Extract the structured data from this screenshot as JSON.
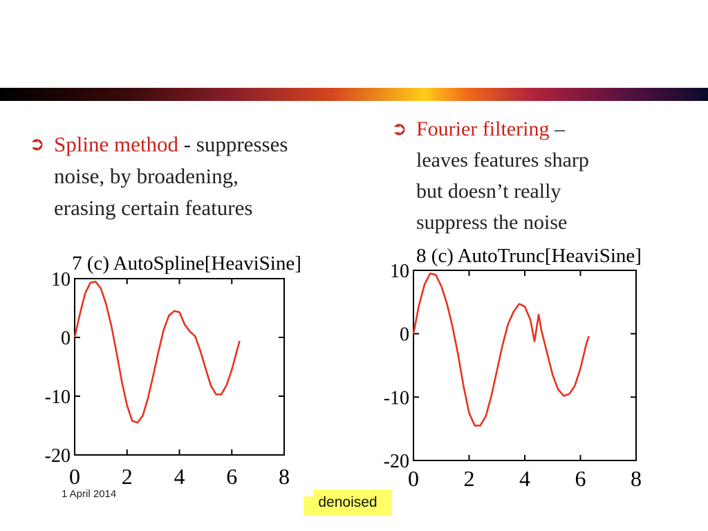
{
  "left_bullet": {
    "highlight": "Spline method",
    "line1_rest": "  - suppresses",
    "line2": "noise, by broadening,",
    "line3": "erasing certain features"
  },
  "right_bullet": {
    "highlight": "Fourier filtering",
    "line1_rest": " –",
    "line2": "leaves features sharp",
    "line3": "but doesn’t really",
    "line4": "suppress the noise"
  },
  "footer": {
    "date": "1 April 2014",
    "tag": "denoised"
  },
  "colors": {
    "accent": "#c9231a",
    "tag_bg": "#ffff66"
  },
  "chart_data": [
    {
      "type": "line",
      "title": "7 (c) AutoSpline[HeaviSine]",
      "xlabel": "",
      "ylabel": "",
      "xlim": [
        0,
        8
      ],
      "ylim": [
        -20,
        10
      ],
      "xticks": [
        0,
        2,
        4,
        6,
        8
      ],
      "yticks": [
        10,
        0,
        -10,
        -20
      ],
      "grid": false,
      "series": [
        {
          "color": "#e8321e",
          "x": [
            0,
            0.2,
            0.4,
            0.6,
            0.8,
            1.0,
            1.2,
            1.4,
            1.6,
            1.8,
            2.0,
            2.2,
            2.4,
            2.6,
            2.8,
            3.0,
            3.2,
            3.4,
            3.6,
            3.8,
            4.0,
            4.2,
            4.4,
            4.6,
            4.8,
            5.0,
            5.2,
            5.4,
            5.6,
            5.8,
            6.0,
            6.2,
            6.3
          ],
          "y": [
            0,
            4,
            7.5,
            9.3,
            9.5,
            8.3,
            5.7,
            2,
            -2.6,
            -7.5,
            -11.6,
            -14.2,
            -14.5,
            -13.3,
            -10.3,
            -6.5,
            -2.4,
            1.3,
            3.7,
            4.5,
            4.3,
            2.2,
            1,
            0.2,
            -2.3,
            -5.3,
            -8.2,
            -9.7,
            -9.7,
            -8.1,
            -5.5,
            -2.2,
            -0.6
          ]
        }
      ]
    },
    {
      "type": "line",
      "title": "8 (c) AutoTrunc[HeaviSine]",
      "xlabel": "",
      "ylabel": "",
      "xlim": [
        0,
        8
      ],
      "ylim": [
        -20,
        10
      ],
      "xticks": [
        0,
        2,
        4,
        6,
        8
      ],
      "yticks": [
        10,
        0,
        -10,
        -20
      ],
      "grid": false,
      "series": [
        {
          "color": "#e8321e",
          "x": [
            0,
            0.2,
            0.4,
            0.6,
            0.8,
            1.0,
            1.2,
            1.4,
            1.6,
            1.8,
            2.0,
            2.2,
            2.4,
            2.6,
            2.8,
            3.0,
            3.2,
            3.4,
            3.6,
            3.8,
            4.0,
            4.2,
            4.35,
            4.5,
            4.6,
            4.8,
            5.0,
            5.2,
            5.4,
            5.6,
            5.8,
            6.0,
            6.2,
            6.3
          ],
          "y": [
            0,
            4.5,
            7.8,
            9.5,
            9.3,
            7.5,
            4.8,
            1.2,
            -3.2,
            -8.3,
            -12.5,
            -14.5,
            -14.5,
            -13,
            -9.8,
            -5.8,
            -1.8,
            1.5,
            3.5,
            4.7,
            4.3,
            2.2,
            -1.2,
            3,
            0.5,
            -3,
            -6.5,
            -8.8,
            -9.8,
            -9.5,
            -8.2,
            -5.5,
            -1.8,
            -0.4
          ]
        }
      ]
    }
  ]
}
